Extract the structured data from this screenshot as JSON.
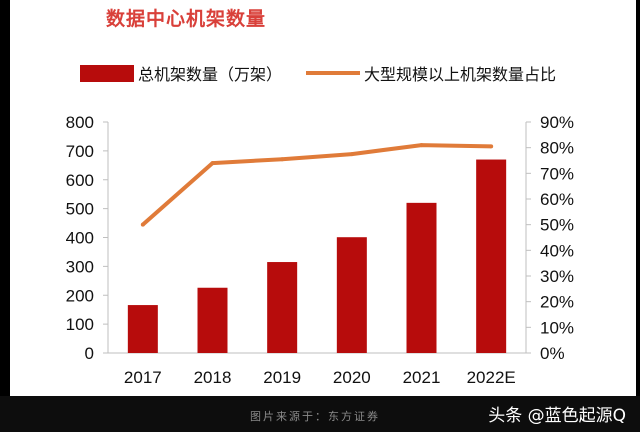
{
  "title": "数据中心机架数量",
  "source": "图片来源于：东方证券",
  "watermark": "头条 @蓝色起源Q",
  "colors": {
    "bar": "#b70c0c",
    "line": "#e07b39",
    "title": "#d9403a"
  },
  "chart_data": {
    "type": "bar",
    "categories": [
      "2017",
      "2018",
      "2019",
      "2020",
      "2021",
      "2022E"
    ],
    "series": [
      {
        "name": "总机架数量（万架）",
        "type": "bar",
        "axis": "left",
        "values": [
          166,
          226,
          315,
          401,
          520,
          670
        ]
      },
      {
        "name": "大型规模以上机架数量占比",
        "type": "line",
        "axis": "right",
        "values": [
          0.5,
          0.74,
          0.755,
          0.775,
          0.81,
          0.805
        ]
      }
    ],
    "y_left": {
      "min": 0,
      "max": 800,
      "ticks": [
        "0",
        "100",
        "200",
        "300",
        "400",
        "500",
        "600",
        "700",
        "800"
      ]
    },
    "y_right": {
      "min": 0,
      "max": 0.9,
      "ticks": [
        "0%",
        "10%",
        "20%",
        "30%",
        "40%",
        "50%",
        "60%",
        "70%",
        "80%",
        "90%"
      ]
    },
    "legend": "top",
    "grid": false
  }
}
